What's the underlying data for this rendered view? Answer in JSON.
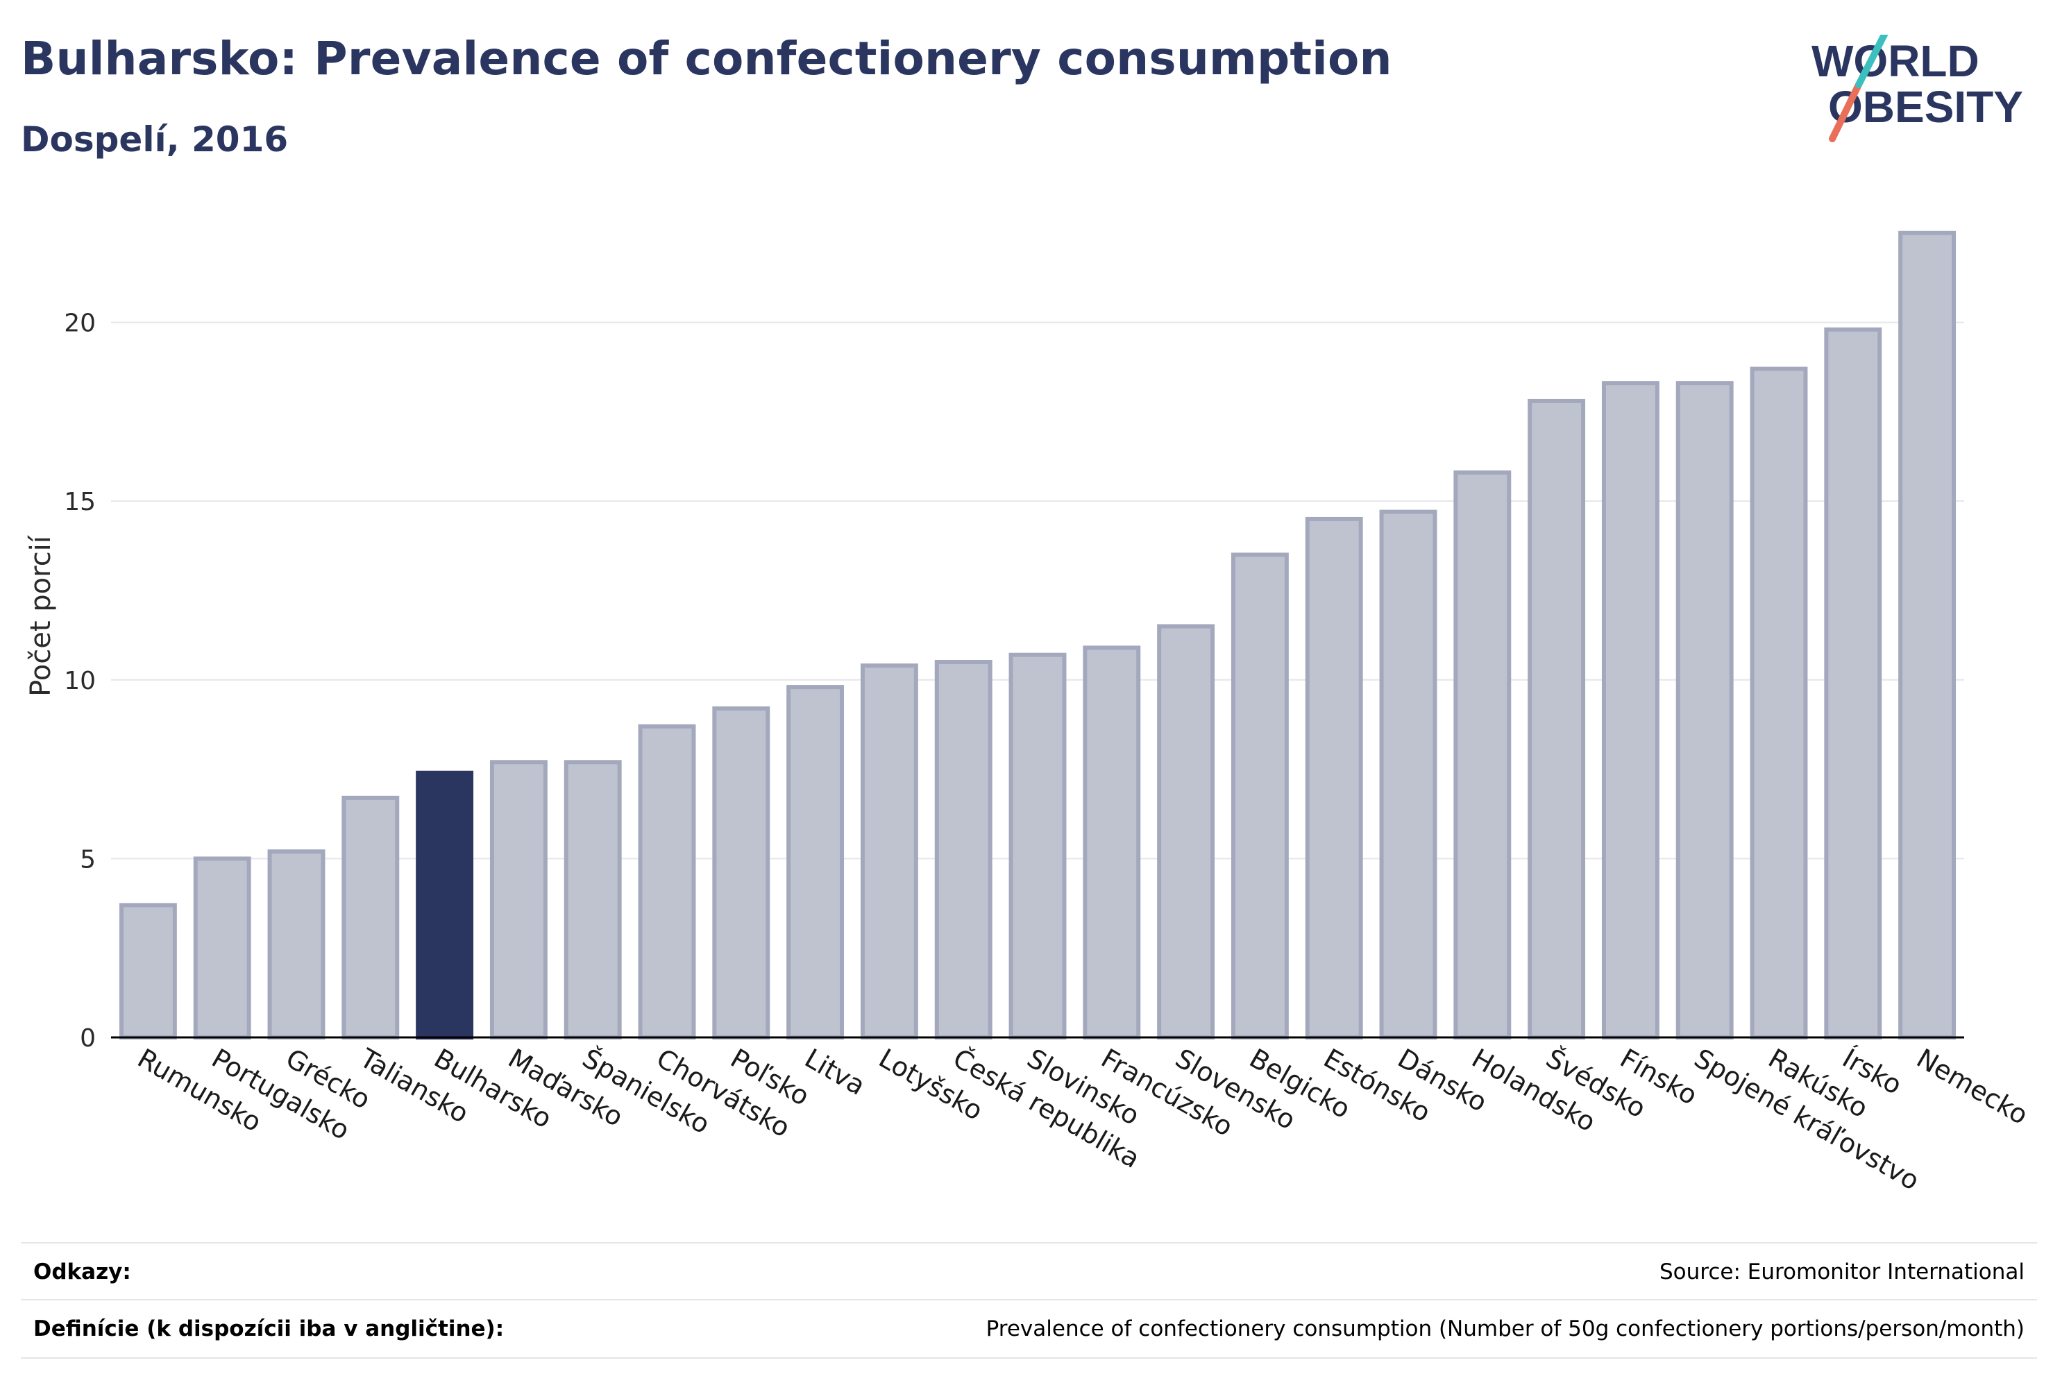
{
  "header": {
    "title": "Bulharsko: Prevalence of confectionery consumption",
    "subtitle": "Dospelí, 2016"
  },
  "logo": {
    "line1": "WORLD",
    "line2": "OBESITY",
    "accent_teal": "#3cbfbf",
    "accent_coral": "#e8705a",
    "text_color": "#2a3560"
  },
  "colors": {
    "bar": "#bfc3d0",
    "bar_border": "#a3a8bd",
    "highlight": "#2a3560",
    "grid": "#e6e6ea",
    "axis": "#000000"
  },
  "chart_data": {
    "type": "bar",
    "title": "Bulharsko: Prevalence of confectionery consumption",
    "subtitle": "Dospelí, 2016",
    "ylabel": "Počet porcií",
    "ylim": [
      0,
      23
    ],
    "yticks": [
      0,
      5,
      10,
      15,
      20
    ],
    "grid": true,
    "highlight": "Bulharsko",
    "categories": [
      "Rumunsko",
      "Portugalsko",
      "Grécko",
      "Taliansko",
      "Bulharsko",
      "Maďarsko",
      "Španielsko",
      "Chorvátsko",
      "Poľsko",
      "Litva",
      "Lotyšsko",
      "Česká republika",
      "Slovinsko",
      "Francúzsko",
      "Slovensko",
      "Belgicko",
      "Estónsko",
      "Dánsko",
      "Holandsko",
      "Švédsko",
      "Fínsko",
      "Spojené kráľovstvo",
      "Rakúsko",
      "Írsko",
      "Nemecko"
    ],
    "values": [
      3.7,
      5.0,
      5.2,
      6.7,
      7.4,
      7.7,
      7.7,
      8.7,
      9.2,
      9.8,
      10.4,
      10.5,
      10.7,
      10.9,
      11.5,
      13.5,
      14.5,
      14.7,
      15.8,
      17.8,
      18.3,
      18.3,
      18.7,
      19.8,
      22.5
    ]
  },
  "footer": {
    "references_label": "Odkazy:",
    "references_value": "Source: Euromonitor International",
    "definitions_label": "Definície (k dispozícii iba v angličtine):",
    "definitions_value": "Prevalence of confectionery consumption (Number of 50g confectionery portions/person/month)"
  }
}
